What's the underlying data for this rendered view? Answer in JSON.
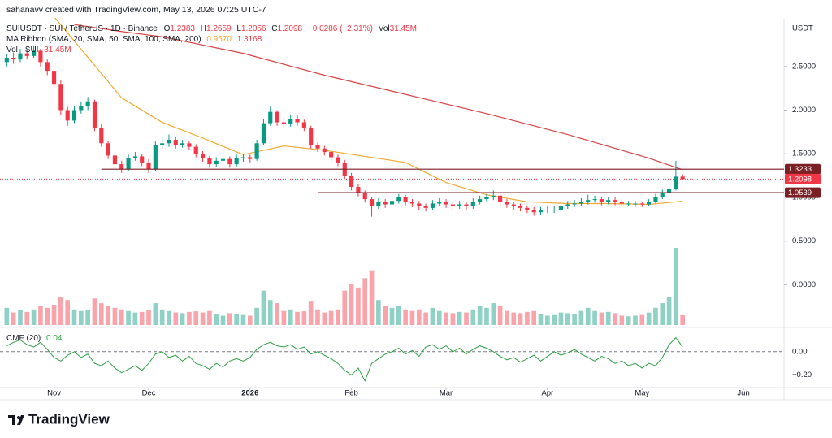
{
  "header": {
    "credit": "sahanavv created with TradingView.com, May 13, 2026 07:25 UTC-7",
    "symbol": "SUIUSDT · SUI / TetherUS · 1D · Binance",
    "ohlc_letters": [
      "O",
      "H",
      "L",
      "C"
    ],
    "change": "−0.0286 (−2.31%)",
    "vol_label": "Vol",
    "volume_label": "31.45M",
    "ma_title": "MA Ribbon (SMA, 20, SMA, 50, SMA, 100, SMA, 200)",
    "ma_value_label": "0.9570",
    "vol_title": "Vol · SUI",
    "cmf_title": "CMF (20)",
    "currency": "USDT",
    "logo": "TradingView"
  },
  "chart_data": {
    "type": "candlestick",
    "ohlc": [
      [
        2.55,
        2.64,
        2.5,
        2.6
      ],
      [
        2.6,
        2.66,
        2.53,
        2.58
      ],
      [
        2.58,
        2.7,
        2.55,
        2.65
      ],
      [
        2.65,
        2.69,
        2.58,
        2.62
      ],
      [
        2.62,
        2.74,
        2.6,
        2.68
      ],
      [
        2.68,
        2.7,
        2.5,
        2.55
      ],
      [
        2.55,
        2.58,
        2.4,
        2.45
      ],
      [
        2.45,
        2.48,
        2.25,
        2.3
      ],
      [
        2.3,
        2.34,
        1.94,
        2.0
      ],
      [
        2.0,
        2.04,
        1.82,
        1.88
      ],
      [
        1.88,
        2.05,
        1.85,
        2.0
      ],
      [
        2.0,
        2.1,
        1.96,
        2.05
      ],
      [
        2.05,
        2.15,
        2.0,
        2.1
      ],
      [
        2.1,
        2.12,
        1.76,
        1.8
      ],
      [
        1.8,
        1.84,
        1.58,
        1.62
      ],
      [
        1.62,
        1.65,
        1.44,
        1.48
      ],
      [
        1.48,
        1.52,
        1.34,
        1.38
      ],
      [
        1.38,
        1.42,
        1.28,
        1.32
      ],
      [
        1.32,
        1.49,
        1.3,
        1.45
      ],
      [
        1.45,
        1.52,
        1.42,
        1.47
      ],
      [
        1.47,
        1.5,
        1.36,
        1.4
      ],
      [
        1.4,
        1.44,
        1.28,
        1.32
      ],
      [
        1.32,
        1.64,
        1.3,
        1.6
      ],
      [
        1.6,
        1.7,
        1.56,
        1.62
      ],
      [
        1.62,
        1.72,
        1.58,
        1.66
      ],
      [
        1.66,
        1.69,
        1.56,
        1.6
      ],
      [
        1.6,
        1.66,
        1.57,
        1.62
      ],
      [
        1.62,
        1.65,
        1.54,
        1.58
      ],
      [
        1.58,
        1.61,
        1.46,
        1.5
      ],
      [
        1.5,
        1.53,
        1.41,
        1.45
      ],
      [
        1.45,
        1.48,
        1.34,
        1.38
      ],
      [
        1.38,
        1.46,
        1.35,
        1.42
      ],
      [
        1.42,
        1.48,
        1.39,
        1.44
      ],
      [
        1.44,
        1.47,
        1.34,
        1.38
      ],
      [
        1.38,
        1.49,
        1.35,
        1.45
      ],
      [
        1.45,
        1.5,
        1.41,
        1.46
      ],
      [
        1.46,
        1.49,
        1.4,
        1.44
      ],
      [
        1.44,
        1.66,
        1.42,
        1.62
      ],
      [
        1.62,
        1.9,
        1.6,
        1.85
      ],
      [
        1.85,
        2.04,
        1.82,
        1.98
      ],
      [
        1.98,
        2.0,
        1.82,
        1.86
      ],
      [
        1.86,
        1.92,
        1.8,
        1.84
      ],
      [
        1.84,
        1.95,
        1.81,
        1.9
      ],
      [
        1.9,
        1.94,
        1.82,
        1.86
      ],
      [
        1.86,
        1.89,
        1.76,
        1.8
      ],
      [
        1.8,
        1.82,
        1.56,
        1.6
      ],
      [
        1.6,
        1.63,
        1.52,
        1.56
      ],
      [
        1.56,
        1.59,
        1.48,
        1.52
      ],
      [
        1.52,
        1.55,
        1.42,
        1.46
      ],
      [
        1.46,
        1.49,
        1.36,
        1.4
      ],
      [
        1.4,
        1.43,
        1.21,
        1.25
      ],
      [
        1.25,
        1.28,
        1.08,
        1.12
      ],
      [
        1.12,
        1.15,
        1.01,
        1.05
      ],
      [
        1.05,
        1.08,
        0.94,
        0.98
      ],
      [
        0.98,
        1.01,
        0.78,
        0.9
      ],
      [
        0.9,
        0.99,
        0.87,
        0.95
      ],
      [
        0.95,
        0.98,
        0.88,
        0.92
      ],
      [
        0.92,
        1.0,
        0.89,
        0.96
      ],
      [
        0.96,
        1.04,
        0.93,
        1.0
      ],
      [
        1.0,
        1.03,
        0.91,
        0.95
      ],
      [
        0.95,
        0.98,
        0.89,
        0.93
      ],
      [
        0.93,
        0.96,
        0.86,
        0.9
      ],
      [
        0.9,
        0.93,
        0.84,
        0.88
      ],
      [
        0.88,
        0.97,
        0.85,
        0.93
      ],
      [
        0.93,
        0.99,
        0.9,
        0.95
      ],
      [
        0.95,
        0.98,
        0.88,
        0.92
      ],
      [
        0.92,
        0.95,
        0.86,
        0.9
      ],
      [
        0.9,
        0.96,
        0.87,
        0.92
      ],
      [
        0.92,
        0.95,
        0.86,
        0.9
      ],
      [
        0.9,
        0.99,
        0.87,
        0.95
      ],
      [
        0.95,
        1.02,
        0.92,
        0.98
      ],
      [
        0.98,
        1.04,
        0.95,
        1.0
      ],
      [
        1.0,
        1.08,
        0.97,
        1.02
      ],
      [
        1.02,
        1.05,
        0.91,
        0.95
      ],
      [
        0.95,
        0.98,
        0.88,
        0.92
      ],
      [
        0.92,
        0.95,
        0.86,
        0.9
      ],
      [
        0.9,
        0.93,
        0.84,
        0.88
      ],
      [
        0.88,
        0.91,
        0.82,
        0.86
      ],
      [
        0.86,
        0.89,
        0.79,
        0.83
      ],
      [
        0.83,
        0.89,
        0.8,
        0.85
      ],
      [
        0.85,
        0.9,
        0.82,
        0.86
      ],
      [
        0.86,
        0.9,
        0.82,
        0.86
      ],
      [
        0.86,
        0.94,
        0.83,
        0.9
      ],
      [
        0.9,
        0.96,
        0.87,
        0.92
      ],
      [
        0.92,
        0.97,
        0.89,
        0.93
      ],
      [
        0.93,
        0.99,
        0.9,
        0.95
      ],
      [
        0.95,
        1.03,
        0.92,
        0.97
      ],
      [
        0.97,
        1.02,
        0.94,
        0.98
      ],
      [
        0.98,
        1.01,
        0.91,
        0.95
      ],
      [
        0.95,
        1.0,
        0.92,
        0.97
      ],
      [
        0.97,
        1.0,
        0.91,
        0.95
      ],
      [
        0.95,
        0.98,
        0.9,
        0.93
      ],
      [
        0.93,
        0.96,
        0.9,
        0.93
      ],
      [
        0.93,
        0.96,
        0.9,
        0.93
      ],
      [
        0.93,
        0.95,
        0.89,
        0.92
      ],
      [
        0.92,
        0.98,
        0.9,
        0.95
      ],
      [
        0.95,
        1.04,
        0.93,
        1.0
      ],
      [
        1.0,
        1.09,
        0.98,
        1.05
      ],
      [
        1.05,
        1.15,
        1.03,
        1.1
      ],
      [
        1.1,
        1.42,
        1.08,
        1.2383
      ],
      [
        1.2383,
        1.2659,
        1.2056,
        1.2098
      ]
    ],
    "up_color": "#089981",
    "down_color": "#f23645",
    "volume": [
      55,
      40,
      48,
      42,
      50,
      60,
      55,
      65,
      90,
      80,
      50,
      45,
      48,
      85,
      70,
      60,
      55,
      50,
      45,
      40,
      42,
      48,
      70,
      50,
      45,
      40,
      38,
      42,
      44,
      40,
      45,
      35,
      30,
      38,
      36,
      32,
      30,
      55,
      110,
      80,
      70,
      45,
      50,
      42,
      44,
      75,
      50,
      40,
      45,
      50,
      110,
      130,
      120,
      150,
      175,
      80,
      60,
      55,
      60,
      50,
      45,
      50,
      40,
      55,
      45,
      40,
      38,
      42,
      40,
      50,
      60,
      55,
      70,
      60,
      45,
      40,
      38,
      42,
      45,
      35,
      30,
      32,
      40,
      38,
      35,
      45,
      55,
      45,
      40,
      42,
      38,
      30,
      28,
      30,
      32,
      40,
      55,
      70,
      90,
      247,
      31.45
    ],
    "volume_ylim": [
      0,
      260
    ],
    "ma_series": [
      {
        "color": "#f0a830",
        "x": [
          7,
          17,
          23,
          29,
          35,
          41,
          47,
          53,
          59,
          65,
          71,
          77,
          83,
          89,
          95,
          100
        ],
        "values": [
          3.07,
          2.14,
          1.86,
          1.68,
          1.49,
          1.59,
          1.54,
          1.47,
          1.4,
          1.17,
          1.03,
          0.95,
          0.93,
          0.93,
          0.92,
          0.957
        ]
      },
      {
        "color": "#d64545",
        "x": [
          10,
          17,
          23,
          35,
          47,
          59,
          71,
          83,
          95,
          100
        ],
        "values": [
          2.98,
          2.9,
          2.84,
          2.65,
          2.4,
          2.18,
          1.96,
          1.72,
          1.45,
          1.3168
        ]
      }
    ],
    "levels": [
      {
        "value": 1.3233,
        "from": 14
      },
      {
        "value": 1.0539,
        "from": 46
      }
    ],
    "level_color": "#7a1f24",
    "cmf": {
      "color": "#2f9e44",
      "values": [
        0.05,
        0.08,
        0.1,
        0.06,
        0.04,
        0.08,
        0.02,
        -0.05,
        -0.08,
        -0.03,
        0.0,
        -0.05,
        -0.02,
        -0.1,
        -0.12,
        -0.08,
        -0.14,
        -0.18,
        -0.15,
        -0.12,
        -0.16,
        -0.1,
        -0.02,
        0.0,
        -0.05,
        -0.03,
        -0.08,
        -0.04,
        -0.1,
        -0.12,
        -0.15,
        -0.1,
        -0.13,
        -0.08,
        -0.06,
        -0.08,
        -0.05,
        0.02,
        0.06,
        0.08,
        0.05,
        0.04,
        0.06,
        0.02,
        0.04,
        -0.02,
        0.0,
        -0.03,
        -0.06,
        -0.1,
        -0.16,
        -0.2,
        -0.14,
        -0.25,
        -0.1,
        -0.06,
        -0.02,
        0.0,
        0.03,
        -0.02,
        0.01,
        -0.04,
        0.04,
        0.06,
        0.02,
        0.05,
        0.0,
        0.03,
        -0.02,
        0.02,
        0.05,
        0.03,
        0.0,
        -0.04,
        -0.07,
        -0.05,
        -0.09,
        -0.06,
        -0.03,
        -0.08,
        -0.04,
        0.0,
        -0.03,
        -0.01,
        0.02,
        -0.02,
        -0.05,
        -0.08,
        -0.04,
        -0.06,
        -0.1,
        -0.08,
        -0.12,
        -0.1,
        -0.14,
        -0.1,
        -0.12,
        -0.05,
        0.06,
        0.12,
        0.04
      ],
      "ylim": [
        -0.3,
        0.2
      ],
      "yticks": [
        {
          "value": 0,
          "label": "0.00"
        },
        {
          "value": -0.2,
          "label": "−0.20"
        }
      ]
    },
    "xlim": [
      -1,
      115
    ],
    "xticks": [
      {
        "value": 7,
        "label": "Nov"
      },
      {
        "value": 21,
        "label": "Dec"
      },
      {
        "value": 36,
        "label": "2026"
      },
      {
        "value": 51,
        "label": "Feb"
      },
      {
        "value": 65,
        "label": "Mar"
      },
      {
        "value": 80,
        "label": "Apr"
      },
      {
        "value": 94,
        "label": "May"
      },
      {
        "value": 109,
        "label": "Jun"
      }
    ],
    "ylim": [
      -0.48,
      3.056
    ],
    "yticks": [
      {
        "value": 2.5,
        "label": "2.5000"
      },
      {
        "value": 2.0,
        "label": "2.0000"
      },
      {
        "value": 1.5,
        "label": "1.5000"
      },
      {
        "value": 1.0,
        "label": "1.0000"
      },
      {
        "value": 0.5,
        "label": "0.5000"
      },
      {
        "value": 0.0,
        "label": "0.0000"
      }
    ]
  }
}
